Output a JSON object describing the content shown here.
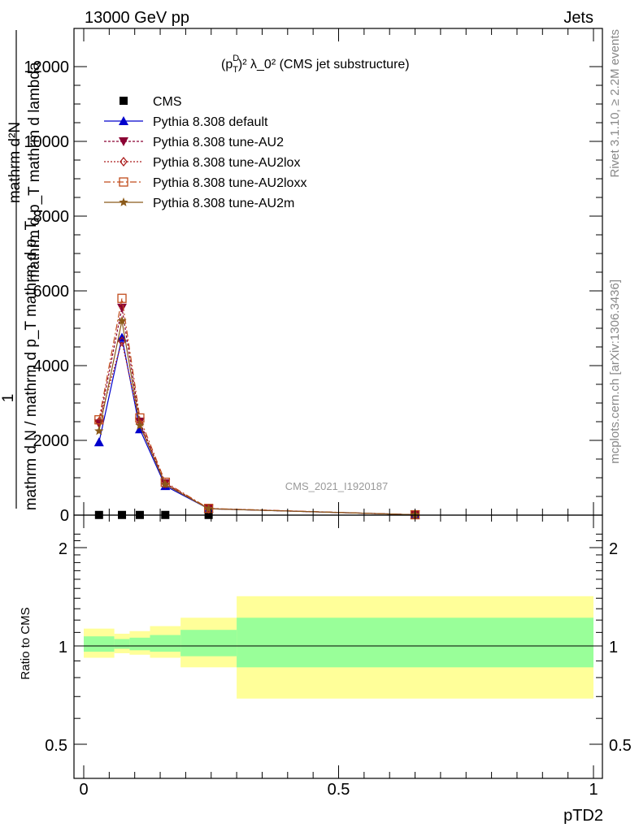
{
  "header": {
    "beam": "13000 GeV pp",
    "process": "Jets"
  },
  "side": {
    "rivet": "Rivet 3.1.10, ≥ 2.2M events",
    "mcplots": "mcplots.cern.ch [arXiv:1306.3436]"
  },
  "watermark": "CMS_2021_I1920187",
  "chart_data": [
    {
      "type": "line",
      "panel": "main",
      "title_parts": {
        "p": "(p",
        "sup": "D",
        "sub": "T",
        "rest": ")² λ_0² (CMS jet substructure)"
      },
      "ylabel_top": "mathrm d²N",
      "ylabel_top_line2": "mathrm d p_T mathrm d lambda",
      "ylabel_one": "1",
      "ylabel_bottom": "mathrm d N / mathrm d p_T mathrm d p_T",
      "xlim": [
        0,
        1
      ],
      "ylim": [
        0,
        13000
      ],
      "y_ticks": [
        0,
        2000,
        4000,
        6000,
        8000,
        10000,
        12000
      ],
      "y_tick_labels": [
        "0",
        "2000",
        "4000",
        "6000",
        "8000",
        "10000",
        "12000"
      ],
      "x": [
        0.03,
        0.075,
        0.11,
        0.16,
        0.245,
        0.65
      ],
      "series": [
        {
          "name": "CMS",
          "values": [
            5,
            5,
            5,
            5,
            5,
            5
          ],
          "color": "#000000",
          "marker": "square",
          "dash": ""
        },
        {
          "name": "Pythia 8.308 default",
          "values": [
            1950,
            4750,
            2300,
            780,
            170,
            10
          ],
          "color": "#0000cc",
          "marker": "triangle-up",
          "dash": ""
        },
        {
          "name": "Pythia 8.308 tune-AU2",
          "values": [
            2450,
            5550,
            2500,
            850,
            175,
            10
          ],
          "color": "#8b0033",
          "marker": "triangle-down",
          "dash": "3,2"
        },
        {
          "name": "Pythia 8.308 tune-AU2lox",
          "values": [
            2500,
            4650,
            2450,
            840,
            172,
            10
          ],
          "color": "#aa1a1a",
          "marker": "diamond",
          "dash": "2,2"
        },
        {
          "name": "Pythia 8.308 tune-AU2loxx",
          "values": [
            2550,
            5800,
            2600,
            880,
            180,
            10
          ],
          "color": "#c04a1a",
          "marker": "square-open",
          "dash": "8,3,2,3"
        },
        {
          "name": "Pythia 8.308 tune-AU2m",
          "values": [
            2250,
            5200,
            2400,
            820,
            170,
            10
          ],
          "color": "#8b5a1a",
          "marker": "star",
          "dash": ""
        }
      ]
    },
    {
      "type": "area",
      "panel": "ratio",
      "ylabel": "Ratio to CMS",
      "xlabel": "pTD2",
      "xlim": [
        0,
        1
      ],
      "ylim": [
        0.4,
        2.3
      ],
      "x_ticks": [
        0,
        0.5,
        1
      ],
      "x_tick_labels": [
        "0",
        "0.5",
        "1"
      ],
      "y_ticks": [
        0.5,
        1,
        2
      ],
      "y_tick_labels": [
        "0.5",
        "1",
        "2"
      ],
      "reference": 1,
      "bins": [
        {
          "lo": 0.0,
          "hi": 0.06,
          "green": [
            0.96,
            1.07
          ],
          "yellow": [
            0.92,
            1.13
          ]
        },
        {
          "lo": 0.06,
          "hi": 0.09,
          "green": [
            0.98,
            1.05
          ],
          "yellow": [
            0.95,
            1.09
          ]
        },
        {
          "lo": 0.09,
          "hi": 0.13,
          "green": [
            0.97,
            1.06
          ],
          "yellow": [
            0.94,
            1.11
          ]
        },
        {
          "lo": 0.13,
          "hi": 0.19,
          "green": [
            0.96,
            1.08
          ],
          "yellow": [
            0.92,
            1.15
          ]
        },
        {
          "lo": 0.19,
          "hi": 0.3,
          "green": [
            0.93,
            1.12
          ],
          "yellow": [
            0.86,
            1.22
          ]
        },
        {
          "lo": 0.3,
          "hi": 1.0,
          "green": [
            0.86,
            1.22
          ],
          "yellow": [
            0.69,
            1.42
          ]
        }
      ]
    }
  ]
}
